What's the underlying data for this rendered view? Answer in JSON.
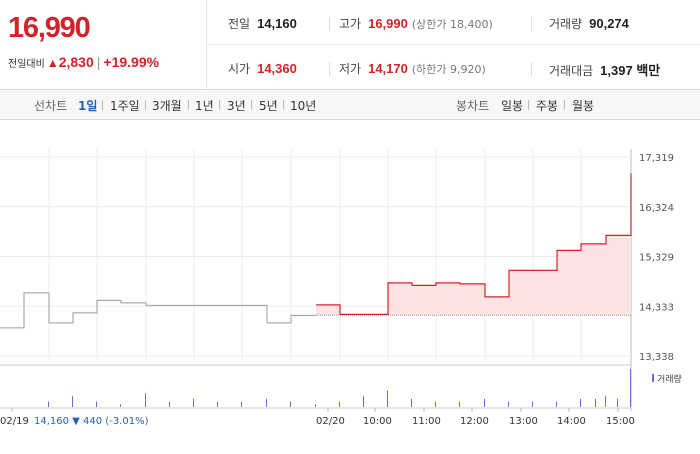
{
  "quote": {
    "price": "16,990",
    "change_label": "전일대비",
    "change_arrow": "▲",
    "change_value": "2,830",
    "change_pct": "+19.99%",
    "prev_close": {
      "label": "전일",
      "value": "14,160"
    },
    "open": {
      "label": "시가",
      "value": "14,360"
    },
    "high": {
      "label": "고가",
      "value": "16,990",
      "sub": "(상한가 18,400)"
    },
    "low": {
      "label": "저가",
      "value": "14,170",
      "sub": "(하한가 9,920)"
    },
    "volume": {
      "label": "거래량",
      "value": "90,274"
    },
    "trade_value": {
      "label": "거래대금",
      "value": "1,397 백만"
    },
    "up_color": "#d2232a"
  },
  "tabs": {
    "line_label": "선차트",
    "line_items": [
      "1일",
      "1주일",
      "3개월",
      "1년",
      "3년",
      "5년",
      "10년"
    ],
    "active": "1일",
    "candle_label": "봉차트",
    "candle_items": [
      "일봉",
      "주봉",
      "월봉"
    ]
  },
  "chart_data": {
    "type": "line",
    "y_ticks": [
      "17,319",
      "16,324",
      "15,329",
      "14,333",
      "13,338"
    ],
    "ylim": [
      13338,
      17319
    ],
    "reference_line": 14160,
    "volume_legend": "거래량",
    "prev_day_info": {
      "date": "02/19",
      "price": "14,160",
      "arrow": "▼",
      "change": "440",
      "pct": "(-3.01%)"
    },
    "x_labels": [
      "02/19",
      "02/20",
      "10:00",
      "11:00",
      "12:00",
      "13:00",
      "14:00",
      "15:00"
    ],
    "series": [
      {
        "values": [
          13900,
          13900,
          14600,
          14600,
          14000,
          14000,
          14200,
          14200,
          14450,
          14450,
          14400,
          14400,
          14350,
          14350,
          14350,
          14350,
          14350,
          14350,
          14350,
          14350,
          14000,
          14000,
          14150,
          14150
        ]
      },
      {
        "values": [
          14360,
          14360,
          14170,
          14170,
          14170,
          14170,
          14800,
          14800,
          14750,
          14750,
          14800,
          14800,
          14780,
          14780,
          14520,
          14520,
          15050,
          15050,
          15050,
          15050,
          15450,
          15450,
          15580,
          15580,
          15750,
          15750,
          15800,
          15800,
          16990
        ]
      }
    ],
    "volume": [
      2,
      4,
      2,
      1,
      5,
      2,
      3,
      2,
      2,
      3,
      2,
      1,
      2,
      4,
      6,
      3,
      2,
      2,
      3,
      2,
      2,
      2,
      3,
      3,
      4,
      3,
      14
    ]
  }
}
